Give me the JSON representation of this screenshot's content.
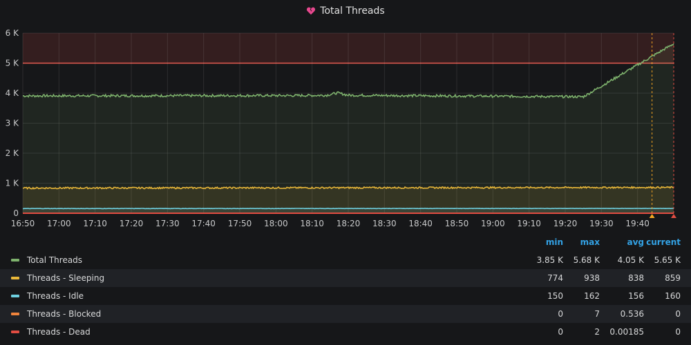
{
  "panel": {
    "title": "Total Threads",
    "icon": "broken-heart-icon",
    "icon_color": "#e8488f"
  },
  "chart_data": {
    "type": "line",
    "title": "Total Threads",
    "y_ticks": [
      "0",
      "1 K",
      "2 K",
      "3 K",
      "4 K",
      "5 K",
      "6 K"
    ],
    "ylim": [
      0,
      6000
    ],
    "x_ticks": [
      "16:50",
      "17:00",
      "17:10",
      "17:20",
      "17:30",
      "17:40",
      "17:50",
      "18:00",
      "18:10",
      "18:20",
      "18:30",
      "18:40",
      "18:50",
      "19:00",
      "19:10",
      "19:20",
      "19:30",
      "19:40"
    ],
    "x_range": [
      "16:50",
      "19:50"
    ],
    "grid": true,
    "threshold": {
      "value": 5000,
      "color": "#e24d42"
    },
    "annotation_times": [
      "19:44",
      "19:50"
    ],
    "series": [
      {
        "name": "Total Threads",
        "color": "#7eb26d",
        "x": [
          "16:50",
          "18:05",
          "18:14",
          "18:17",
          "18:20",
          "19:25",
          "19:50"
        ],
        "values": [
          3910,
          3920,
          3930,
          4010,
          3930,
          3880,
          5650
        ]
      },
      {
        "name": "Threads - Sleeping",
        "color": "#eab839",
        "x": [
          "16:50",
          "19:50"
        ],
        "values": [
          838,
          859
        ]
      },
      {
        "name": "Threads - Idle",
        "color": "#6ed0e0",
        "x": [
          "16:50",
          "19:50"
        ],
        "values": [
          156,
          160
        ]
      },
      {
        "name": "Threads - Blocked",
        "color": "#ef843c",
        "x": [
          "16:50",
          "19:50"
        ],
        "values": [
          0,
          0
        ]
      },
      {
        "name": "Threads - Dead",
        "color": "#e24d42",
        "x": [
          "16:50",
          "19:50"
        ],
        "values": [
          0,
          0
        ]
      }
    ]
  },
  "legend": {
    "headers": {
      "min": "min",
      "max": "max",
      "avg": "avg",
      "current": "current"
    },
    "rows": [
      {
        "name": "Total Threads",
        "color": "#7eb26d",
        "min": "3.85 K",
        "max": "5.68 K",
        "avg": "4.05 K",
        "current": "5.65 K"
      },
      {
        "name": "Threads - Sleeping",
        "color": "#eab839",
        "min": "774",
        "max": "938",
        "avg": "838",
        "current": "859"
      },
      {
        "name": "Threads - Idle",
        "color": "#6ed0e0",
        "min": "150",
        "max": "162",
        "avg": "156",
        "current": "160"
      },
      {
        "name": "Threads - Blocked",
        "color": "#ef843c",
        "min": "0",
        "max": "7",
        "avg": "0.536",
        "current": "0"
      },
      {
        "name": "Threads - Dead",
        "color": "#e24d42",
        "min": "0",
        "max": "2",
        "avg": "0.00185",
        "current": "0"
      }
    ]
  }
}
